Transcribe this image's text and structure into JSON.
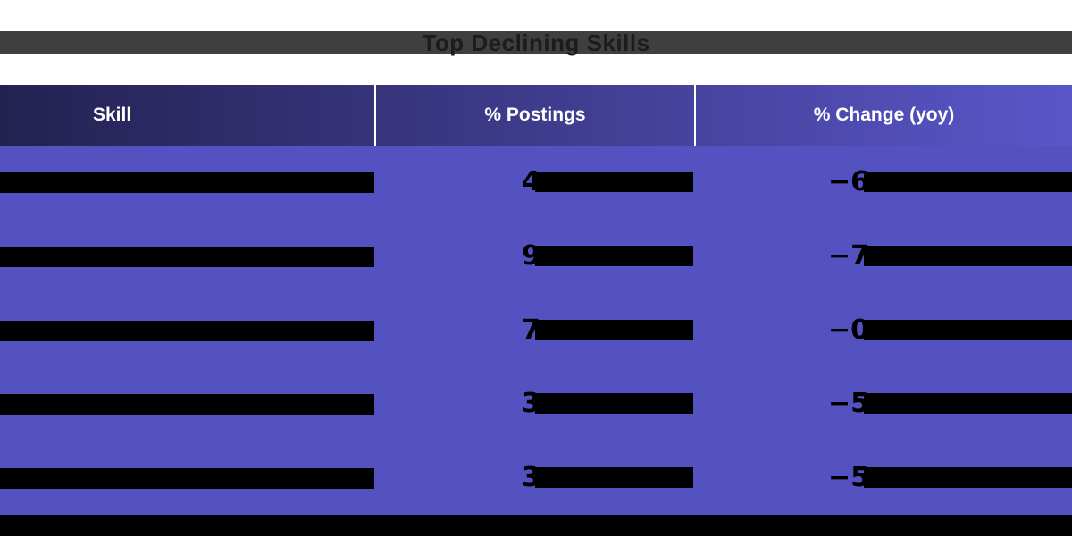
{
  "titlebar": {
    "text": "Top Declining Skills",
    "bg_color": "#3f3f3f",
    "text_color": "#1c1c1c"
  },
  "table": {
    "header": {
      "columns": [
        "Skill",
        "% Postings",
        "% Change (yoy)"
      ],
      "gradient_left": "#232150",
      "gradient_right": "#5a56c9",
      "text_color": "#ffffff",
      "divider_color": "#ffffff"
    },
    "body_bg_color": "#5452c1",
    "redaction_color": "#000000",
    "rows": [
      {
        "skill_visible": "",
        "skill_redacted": true,
        "postings_visible": "4",
        "postings_redacted": true,
        "change_visible": "−6",
        "change_redacted": true
      },
      {
        "skill_visible": "",
        "skill_redacted": true,
        "postings_visible": "9",
        "postings_redacted": true,
        "change_visible": "−7",
        "change_redacted": true
      },
      {
        "skill_visible": "",
        "skill_redacted": true,
        "postings_visible": "7",
        "postings_redacted": true,
        "change_visible": "−0",
        "change_redacted": true
      },
      {
        "skill_visible": "",
        "skill_redacted": true,
        "postings_visible": "3",
        "postings_redacted": true,
        "change_visible": "−5",
        "change_redacted": true
      },
      {
        "skill_visible": "",
        "skill_redacted": true,
        "postings_visible": "3",
        "postings_redacted": true,
        "change_visible": "−5",
        "change_redacted": true
      }
    ],
    "footer_redacted": true
  },
  "chart_data": {
    "type": "table",
    "title": "Top Declining Skills",
    "columns": [
      "Skill",
      "% Postings",
      "% Change (yoy)"
    ],
    "rows": [
      [
        "(obscured by black bar)",
        "4… (rest obscured)",
        "−6… (rest obscured)"
      ],
      [
        "(obscured by black bar)",
        "9… (rest obscured)",
        "−7… (rest obscured)"
      ],
      [
        "(obscured by black bar)",
        "7… (rest obscured)",
        "−0… (rest obscured)"
      ],
      [
        "(obscured by black bar)",
        "3… (rest obscured)",
        "−5… (rest obscured)"
      ],
      [
        "(obscured by black bar)",
        "3… (rest obscured)",
        "−5… (rest obscured)"
      ]
    ],
    "note": "All Skill cells, the tails of every numeric cell, and a bottom caption line are covered by solid black bars; only the leading characters of the numeric cells are visible.",
    "layout": {
      "header_bg": "gradient navy-to-purple",
      "body_bg": "#5452c1",
      "grid": "white vertical dividers in header only"
    }
  }
}
